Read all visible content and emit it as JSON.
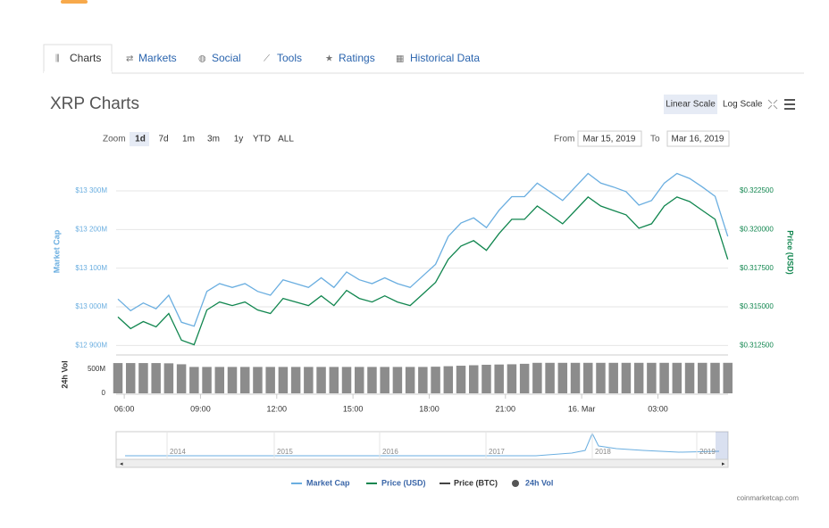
{
  "tabs": [
    "Charts",
    "Markets",
    "Social",
    "Tools",
    "Ratings",
    "Historical Data"
  ],
  "header": {
    "title": "XRP Charts",
    "scale_buttons": [
      "Linear Scale",
      "Log Scale"
    ]
  },
  "range_selector": {
    "zoom_label": "Zoom",
    "buttons": [
      "1d",
      "7d",
      "1m",
      "3m",
      "1y",
      "YTD",
      "ALL"
    ],
    "from_label": "From",
    "from": "Mar 15, 2019",
    "to_label": "To",
    "to": "Mar 16, 2019"
  },
  "chart_data": {
    "type": "line",
    "x": [
      -0.25,
      0.25,
      0.75,
      1.25,
      1.75,
      2.25,
      2.75,
      3.25,
      3.75,
      4.25,
      4.75,
      5.25,
      5.75,
      6.25,
      6.75,
      7.25,
      7.75,
      8.25,
      8.75,
      9.25,
      9.75,
      10.25,
      10.75,
      11.25,
      11.75,
      12.25,
      12.75,
      13.25,
      13.75,
      14.25,
      14.75,
      15.25,
      15.75,
      16.25,
      16.75,
      17.25,
      17.75,
      18.25,
      18.75,
      19.25,
      19.75,
      20.25,
      20.75,
      21.25,
      21.75,
      22.25,
      22.75,
      23.25,
      23.75
    ],
    "xlim": [
      -0.32,
      23.76
    ],
    "xticks": [
      {
        "value": 0,
        "label": "06:00"
      },
      {
        "value": 3,
        "label": "09:00"
      },
      {
        "value": 6,
        "label": "12:00"
      },
      {
        "value": 9,
        "label": "15:00"
      },
      {
        "value": 12,
        "label": "18:00"
      },
      {
        "value": 15,
        "label": "21:00"
      },
      {
        "value": 18,
        "label": "16. Mar"
      },
      {
        "value": 21,
        "label": "03:00"
      }
    ],
    "ylabel": "Market Cap",
    "ylim": [
      12880,
      13360
    ],
    "yticks": [
      {
        "value": 12900,
        "label": "$12 900M"
      },
      {
        "value": 13000,
        "label": "$13 000M"
      },
      {
        "value": 13100,
        "label": "$13 100M"
      },
      {
        "value": 13200,
        "label": "$13 200M"
      },
      {
        "value": 13300,
        "label": "$13 300M"
      }
    ],
    "y2label": "Price (USD)",
    "y2lim": [
      0.312,
      0.324
    ],
    "y2ticks": [
      {
        "value": 0.3125,
        "label": "$0.312500"
      },
      {
        "value": 0.315,
        "label": "$0.315000"
      },
      {
        "value": 0.3175,
        "label": "$0.317500"
      },
      {
        "value": 0.32,
        "label": "$0.320000"
      },
      {
        "value": 0.3225,
        "label": "$0.322500"
      }
    ],
    "grid": true,
    "series": [
      {
        "name": "Market Cap",
        "color": "#6aaee0",
        "values": [
          13020,
          12990,
          13010,
          12995,
          13030,
          12960,
          12950,
          13040,
          13060,
          13050,
          13060,
          13040,
          13030,
          13070,
          13060,
          13050,
          13075,
          13050,
          13090,
          13070,
          13060,
          13075,
          13060,
          13050,
          13080,
          13110,
          13182,
          13217,
          13230,
          13205,
          13250,
          13285,
          13285,
          13320,
          13298,
          13275,
          13310,
          13345,
          13320,
          13310,
          13298,
          13263,
          13275,
          13320,
          13345,
          13332,
          13310,
          13286,
          13182
        ]
      },
      {
        "name": "Price (USD)",
        "color": "#11864f",
        "axis": "y2",
        "values": [
          0.31434,
          0.31359,
          0.31405,
          0.3137,
          0.31457,
          0.31284,
          0.31255,
          0.3148,
          0.31531,
          0.31508,
          0.31531,
          0.3148,
          0.31457,
          0.31554,
          0.31531,
          0.31508,
          0.31571,
          0.31508,
          0.31606,
          0.31554,
          0.31531,
          0.31571,
          0.31531,
          0.31508,
          0.31583,
          0.31658,
          0.31807,
          0.31893,
          0.31928,
          0.31865,
          0.31974,
          0.32066,
          0.32066,
          0.32152,
          0.32095,
          0.32037,
          0.32123,
          0.3221,
          0.32152,
          0.32123,
          0.32095,
          0.32008,
          0.32037,
          0.32152,
          0.3221,
          0.32181,
          0.32123,
          0.32066,
          0.31807
        ]
      }
    ],
    "volume": {
      "name": "24h Vol",
      "ylabel": "24h Vol",
      "color": "#8c8c8c",
      "ylim": [
        0,
        700
      ],
      "yticks": [
        0,
        {
          "value": 500,
          "label": "500M"
        }
      ],
      "values": [
        625,
        625,
        625,
        625,
        620,
        600,
        545,
        545,
        545,
        545,
        545,
        545,
        545,
        545,
        545,
        545,
        545,
        545,
        545,
        545,
        545,
        545,
        545,
        545,
        545,
        550,
        560,
        570,
        580,
        590,
        595,
        600,
        610,
        630,
        630,
        630,
        630,
        630,
        630,
        630,
        630,
        630,
        630,
        630,
        630,
        630,
        630,
        630,
        630
      ]
    },
    "legend_extra": [
      {
        "name": "Price (BTC)",
        "color": "#444444"
      }
    ],
    "navigator_labels": [
      "2014",
      "2015",
      "2016",
      "2017",
      "2018",
      "2019"
    ]
  },
  "credit": "coinmarketcap.com"
}
